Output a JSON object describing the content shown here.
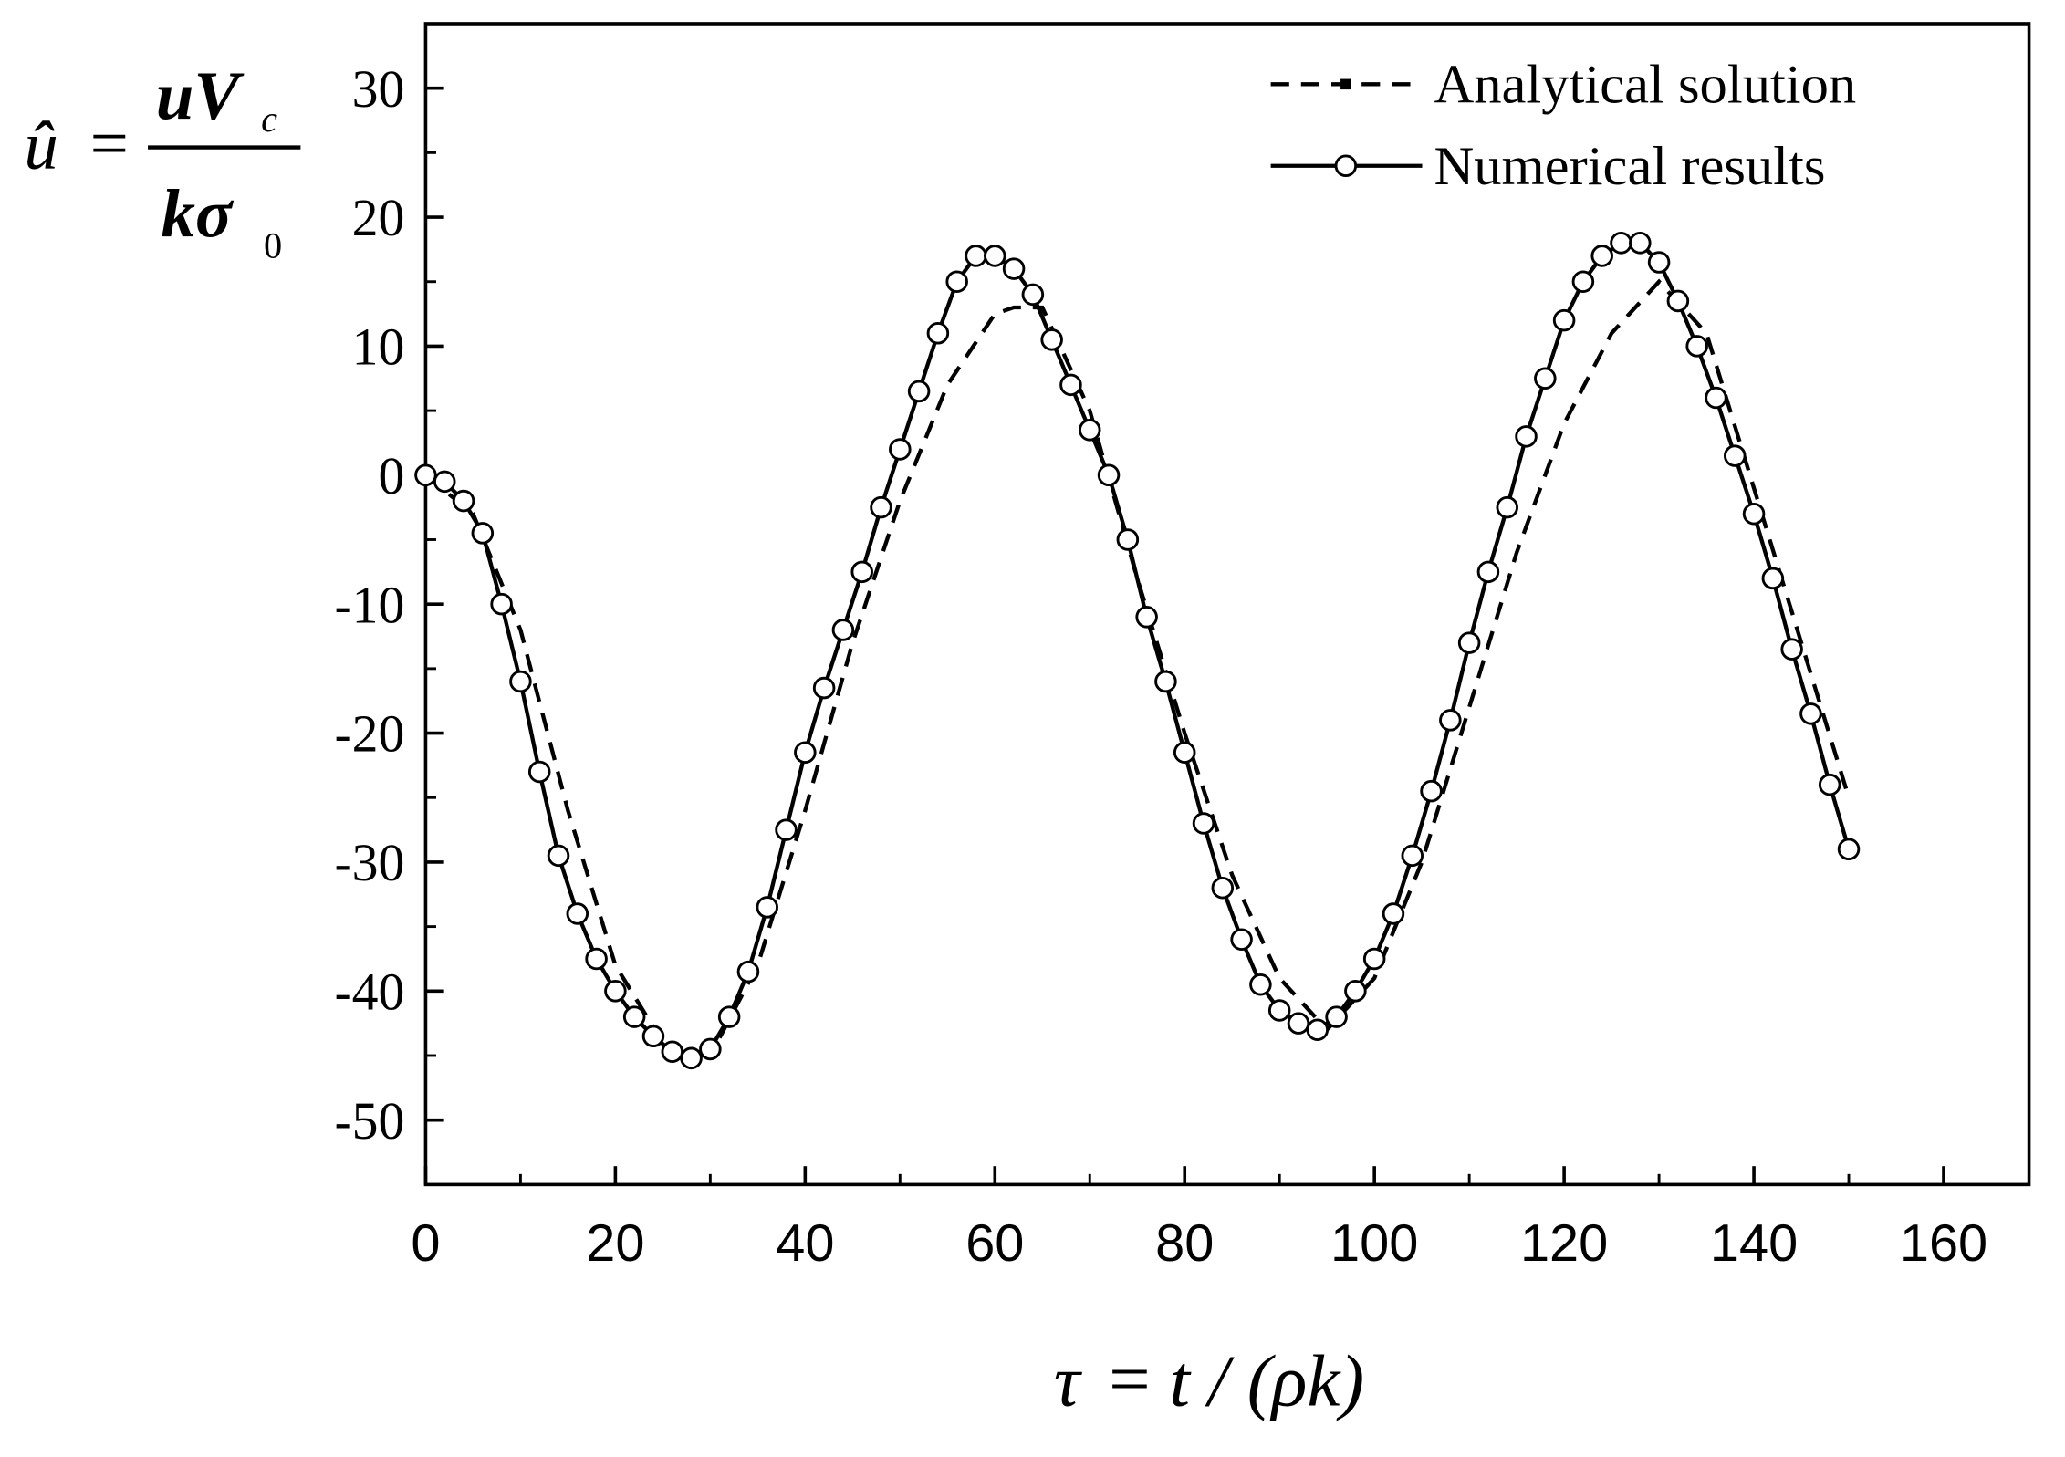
{
  "chart_data": {
    "type": "line",
    "xlabel": {
      "lhs": "τ",
      "eq": "=",
      "rhs": "t / (ρk)"
    },
    "ylabel": {
      "lhs": "û",
      "eq": "=",
      "num": "uV",
      "num_sub": "c",
      "den": "kσ",
      "den_sub": "0"
    },
    "xlim": [
      0,
      169
    ],
    "ylim": [
      -55,
      35
    ],
    "xticks": [
      0,
      20,
      40,
      60,
      80,
      100,
      120,
      140,
      160
    ],
    "xminorticks": [
      10,
      30,
      50,
      70,
      90,
      110,
      130,
      150
    ],
    "yticks": [
      -50,
      -40,
      -30,
      -20,
      -10,
      0,
      10,
      20,
      30
    ],
    "yminorticks": [
      -45,
      -35,
      -25,
      -15,
      -5,
      5,
      15,
      25
    ],
    "legend": "upper right",
    "series": [
      {
        "name": "Analytical solution",
        "color": "#000000",
        "style": "dashed",
        "x": [
          0,
          5,
          10,
          15,
          20,
          25,
          28,
          30,
          35,
          40,
          45,
          50,
          55,
          60,
          62,
          65,
          70,
          75,
          80,
          85,
          90,
          95,
          100,
          105,
          110,
          115,
          120,
          125,
          130,
          135,
          140,
          145,
          150
        ],
        "values": [
          0,
          -3,
          -12,
          -26,
          -38,
          -44,
          -45,
          -45,
          -38,
          -26,
          -13,
          -2,
          7,
          12.5,
          13,
          13,
          5,
          -8,
          -20,
          -31,
          -39,
          -43,
          -39,
          -30,
          -18,
          -6,
          4,
          11,
          15,
          11,
          -1,
          -13,
          -25
        ]
      },
      {
        "name": "Numerical results",
        "color": "#000000",
        "style": "solid-circles",
        "x": [
          0,
          2,
          4,
          6,
          8,
          10,
          12,
          14,
          16,
          18,
          20,
          22,
          24,
          26,
          28,
          30,
          32,
          34,
          36,
          38,
          40,
          42,
          44,
          46,
          48,
          50,
          52,
          54,
          56,
          58,
          60,
          62,
          64,
          66,
          68,
          70,
          72,
          74,
          76,
          78,
          80,
          82,
          84,
          86,
          88,
          90,
          92,
          94,
          96,
          98,
          100,
          102,
          104,
          106,
          108,
          110,
          112,
          114,
          116,
          118,
          120,
          122,
          124,
          126,
          128,
          130,
          132,
          134,
          136,
          138,
          140,
          142,
          144,
          146,
          148,
          150
        ],
        "values": [
          0,
          -0.5,
          -2,
          -4.5,
          -10,
          -16,
          -23,
          -29.5,
          -34,
          -37.5,
          -40,
          -42,
          -43.5,
          -44.7,
          -45.2,
          -44.5,
          -42,
          -38.5,
          -33.5,
          -27.5,
          -21.5,
          -16.5,
          -12,
          -7.5,
          -2.5,
          2,
          6.5,
          11,
          15,
          17,
          17,
          16,
          14,
          10.5,
          7,
          3.5,
          0,
          -5,
          -11,
          -16,
          -21.5,
          -27,
          -32,
          -36,
          -39.5,
          -41.5,
          -42.5,
          -43,
          -42,
          -40,
          -37.5,
          -34,
          -29.5,
          -24.5,
          -19,
          -13,
          -7.5,
          -2.5,
          3,
          7.5,
          12,
          15,
          17,
          18,
          18,
          16.5,
          13.5,
          10,
          6,
          1.5,
          -3,
          -8,
          -13.5,
          -18.5,
          -24,
          -29
        ]
      }
    ]
  }
}
